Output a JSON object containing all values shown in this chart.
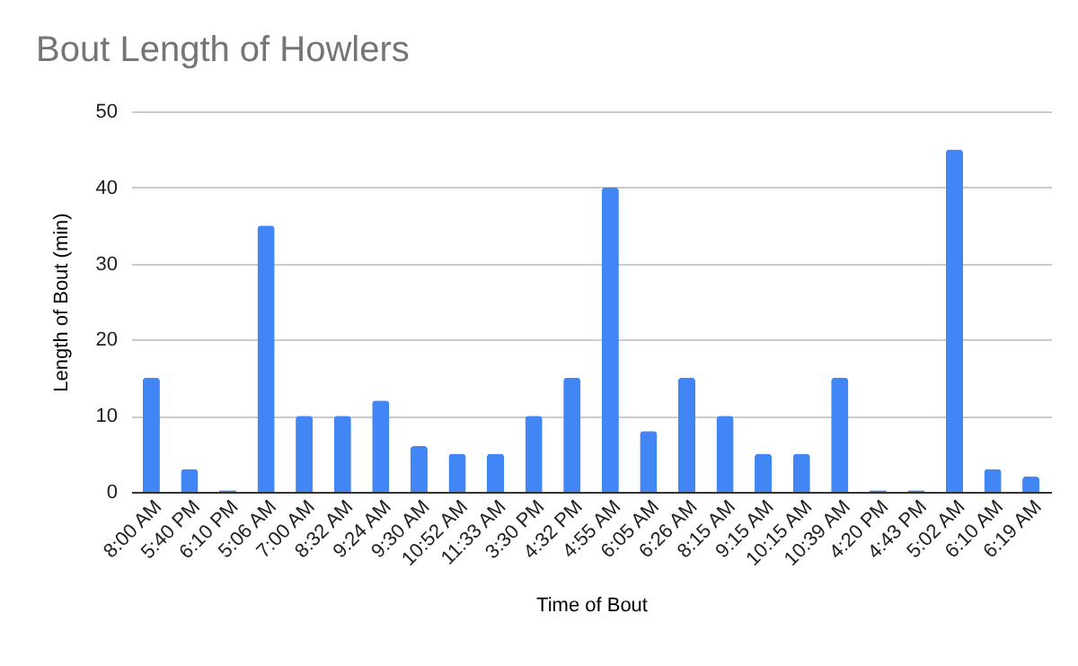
{
  "chart_data": {
    "type": "bar",
    "title": "Bout Length of Howlers",
    "xlabel": "Time of Bout",
    "ylabel": "Length of Bout (min)",
    "categories": [
      "8:00 AM",
      "5:40 PM",
      "6:10 PM",
      "5:06 AM",
      "7:00 AM",
      "8:32 AM",
      "9:24 AM",
      "9:30 AM",
      "10:52 AM",
      "11:33 AM",
      "3:30 PM",
      "4:32 PM",
      "4:55 AM",
      "6:05 AM",
      "6:26 AM",
      "8:15 AM",
      "9:15 AM",
      "10:15 AM",
      "10:39 AM",
      "4:20 PM",
      "4:43 PM",
      "5:02 AM",
      "6:10 AM",
      "6:19 AM"
    ],
    "values": [
      15,
      3,
      0.2,
      35,
      10,
      10,
      12,
      6,
      5,
      5,
      10,
      15,
      40,
      8,
      15,
      10,
      5,
      5,
      15,
      0.2,
      0.2,
      45,
      3,
      2
    ],
    "color": "#4285f4",
    "ylim": [
      0,
      50
    ],
    "yticks": [
      0,
      10,
      20,
      30,
      40,
      50
    ],
    "grid": "y"
  }
}
